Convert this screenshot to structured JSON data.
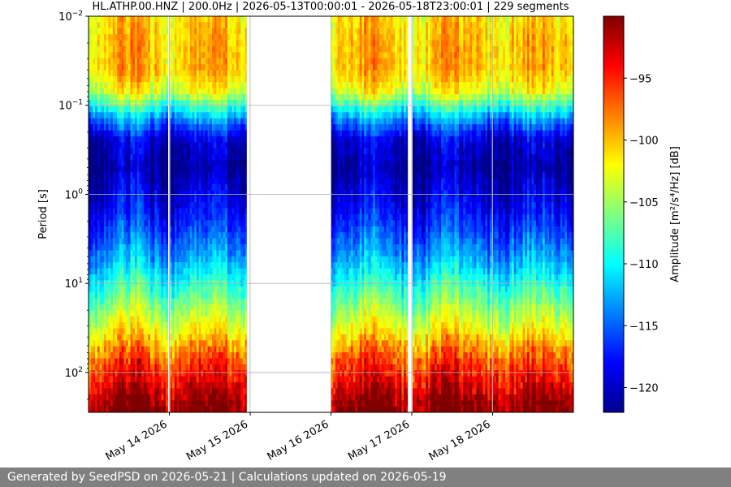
{
  "chart_data": {
    "type": "heatmap",
    "title": "HL.ATHP.00.HNZ | 200.0Hz | 2026-05-13T00:00:01 - 2026-05-18T23:00:01 | 229 segments",
    "xlabel": "",
    "ylabel": "Period [s]",
    "y_scale": "log",
    "y_inverted": true,
    "ylim": [
      0.01,
      280
    ],
    "y_ticks": [
      {
        "value": 0.01,
        "base": "10",
        "exp": "−2"
      },
      {
        "value": 0.1,
        "base": "10",
        "exp": "−1"
      },
      {
        "value": 1,
        "base": "10",
        "exp": "0"
      },
      {
        "value": 10,
        "base": "10",
        "exp": "1"
      },
      {
        "value": 100,
        "base": "10",
        "exp": "2"
      }
    ],
    "xlim": [
      "2026-05-13T00:00",
      "2026-05-19T00:00"
    ],
    "x_ticks": [
      {
        "value": "2026-05-14T00:00",
        "label": "May 14 2026"
      },
      {
        "value": "2026-05-15T00:00",
        "label": "May 15 2026"
      },
      {
        "value": "2026-05-16T00:00",
        "label": "May 16 2026"
      },
      {
        "value": "2026-05-17T00:00",
        "label": "May 17 2026"
      },
      {
        "value": "2026-05-18T00:00",
        "label": "May 18 2026"
      }
    ],
    "grid": true,
    "data_gaps": [
      [
        "2026-05-13T23:40",
        "2026-05-14T00:00"
      ],
      [
        "2026-05-14T23:00",
        "2026-05-16T00:00"
      ],
      [
        "2026-05-16T22:50",
        "2026-05-17T00:00"
      ],
      [
        "2026-05-17T23:50",
        "2026-05-18T00:00"
      ]
    ],
    "profile_db": [
      {
        "period": 0.01,
        "db": -101
      },
      {
        "period": 0.02,
        "db": -100
      },
      {
        "period": 0.04,
        "db": -100
      },
      {
        "period": 0.07,
        "db": -103
      },
      {
        "period": 0.1,
        "db": -108
      },
      {
        "period": 0.15,
        "db": -114
      },
      {
        "period": 0.25,
        "db": -119.5
      },
      {
        "period": 0.5,
        "db": -121
      },
      {
        "period": 1,
        "db": -119
      },
      {
        "period": 2,
        "db": -117
      },
      {
        "period": 5,
        "db": -113
      },
      {
        "period": 10,
        "db": -109
      },
      {
        "period": 20,
        "db": -105
      },
      {
        "period": 40,
        "db": -101
      },
      {
        "period": 70,
        "db": -97
      },
      {
        "period": 100,
        "db": -95
      },
      {
        "period": 150,
        "db": -93
      },
      {
        "period": 200,
        "db": -91
      },
      {
        "period": 280,
        "db": -90
      }
    ],
    "colorbar": {
      "label": "Amplitude [m²/s⁴/Hz] [dB]",
      "range": [
        -122,
        -90
      ],
      "colormap": "jet",
      "ticks": [
        -95,
        -100,
        -105,
        -110,
        -115,
        -120
      ],
      "tick_labels": [
        "−95",
        "−100",
        "−105",
        "−110",
        "−115",
        "−120"
      ]
    }
  },
  "footer": {
    "text": "Generated by SeedPSD on 2026-05-21 | Calculations updated on 2026-05-19"
  }
}
